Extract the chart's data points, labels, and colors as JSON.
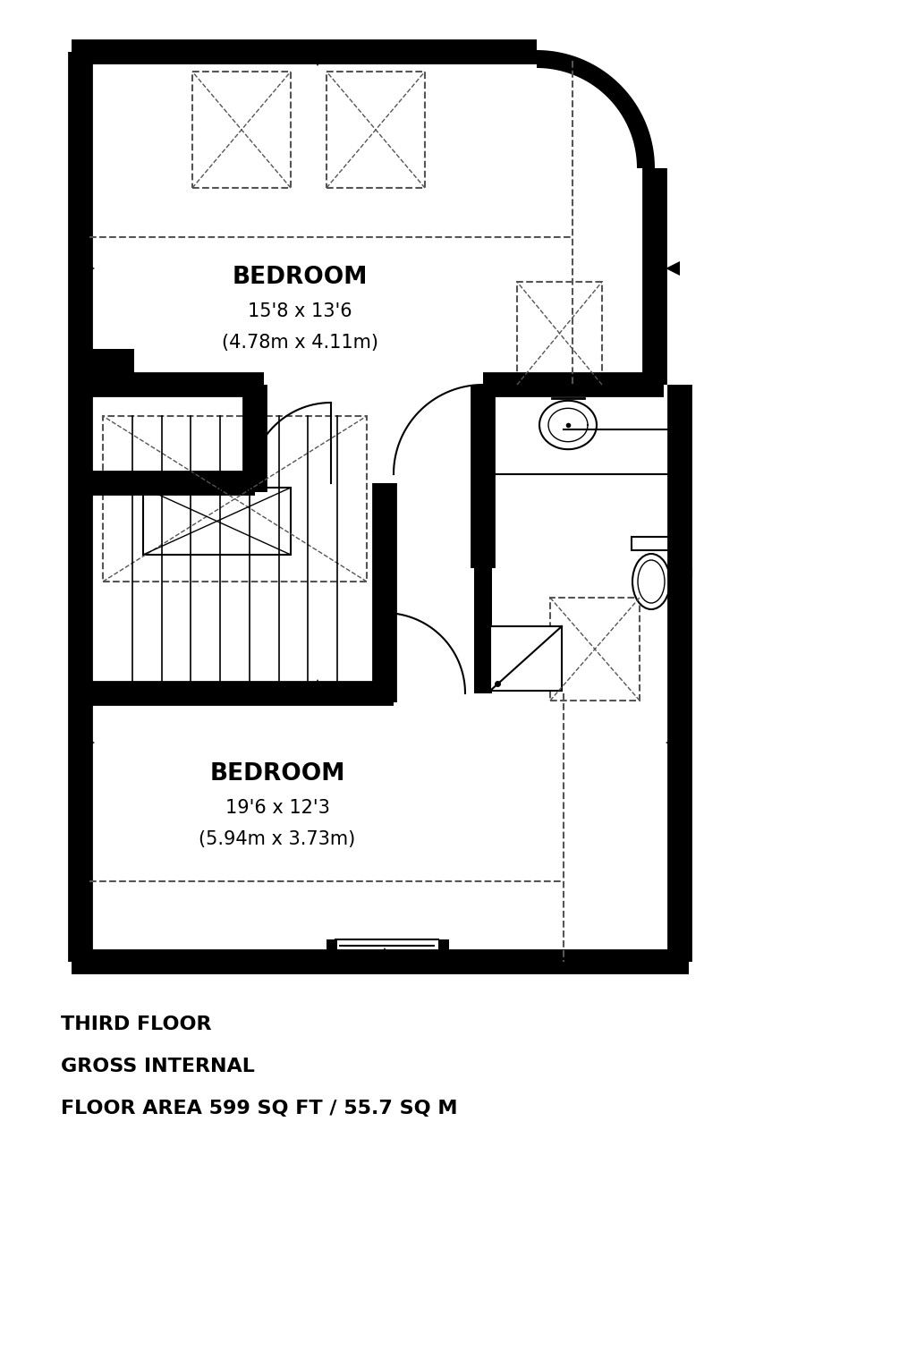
{
  "title_lines": [
    "THIRD FLOOR",
    "GROSS INTERNAL",
    "FLOOR AREA 599 SQ FT / 55.7 SQ M"
  ],
  "background_color": "#ffffff",
  "bedroom1_label": "BEDROOM",
  "bedroom1_dim1": "15'8 x 13'6",
  "bedroom1_dim2": "(4.78m x 4.11m)",
  "bedroom2_label": "BEDROOM",
  "bedroom2_dim1": "19'6 x 12'3",
  "bedroom2_dim2": "(5.94m x 3.73m)"
}
